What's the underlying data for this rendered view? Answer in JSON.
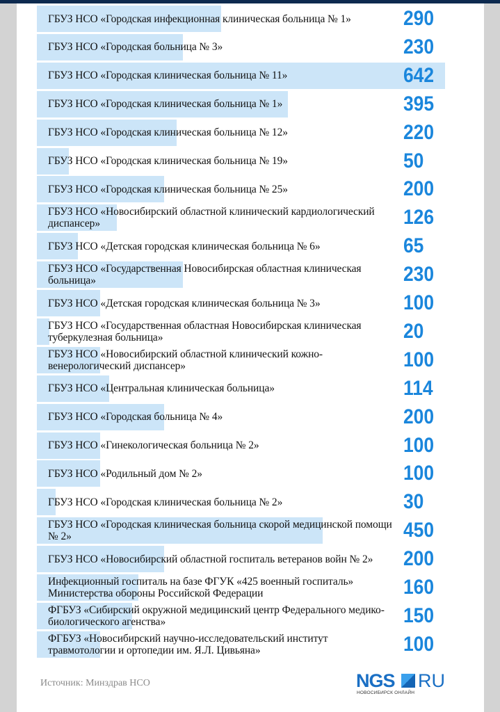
{
  "chart_data": {
    "type": "bar",
    "orientation": "horizontal",
    "color": "#cce5f8",
    "value_color": "#1a86dc",
    "categories": [
      "ГБУЗ НСО «Городская инфекционная  клиническая больница № 1»",
      "ГБУЗ НСО «Городская больница № 3»",
      "ГБУЗ НСО «Городская клиническая больница № 11»",
      "ГБУЗ НСО «Городская клиническая больница № 1»",
      "ГБУЗ НСО «Городская клиническая больница № 12»",
      "ГБУЗ НСО «Городская клиническая больница № 19»",
      "ГБУЗ НСО «Городская клиническая больница № 25»",
      "ГБУЗ НСО «Новосибирский областной клинический кардиологический диспансер»",
      "ГБУЗ НСО «Детская городская клиническая больница № 6»",
      "ГБУЗ НСО «Государственная Новосибирская областная клиническая больница»",
      "ГБУЗ НСО «Детская городская клиническая больница № 3»",
      "ГБУЗ НСО «Государственная областная Новосибирская клиническая туберкулезная больница»",
      "ГБУЗ НСО «Новосибирский областной клинический кожно-венерологический диспансер»",
      "ГБУЗ НСО «Центральная клиническая больница»",
      "ГБУЗ НСО «Городская больница № 4»",
      "ГБУЗ НСО «Гинекологическая больница № 2»",
      "ГБУЗ НСО «Родильный дом № 2»",
      "ГБУЗ НСО «Городская клиническая больница № 2»",
      "ГБУЗ НСО «Городская клиническая больница скорой медицинской помощи № 2»",
      "ГБУЗ НСО «Новосибирский областной госпиталь ветеранов войн № 2»",
      "Инфекционный госпиталь на базе ФГУК «425 военный госпиталь» Министерства обороны Российской Федерации",
      "ФГБУЗ «Сибирский окружной медицинский центр Федерального медико-биологического агенства»",
      "ФГБУЗ «Новосибирский научно-исследовательский институт травмотологии и ортопедии им. Я.Л. Цивьяна»"
    ],
    "values": [
      290,
      230,
      642,
      395,
      220,
      50,
      200,
      126,
      65,
      230,
      100,
      20,
      100,
      114,
      200,
      100,
      100,
      30,
      450,
      200,
      160,
      150,
      100
    ],
    "xlim": [
      0,
      642
    ]
  },
  "footer": {
    "source": "Источник: Минздрав НСО",
    "logo_text": "NGS RU НОВОСИБИРСК ОНЛАЙН"
  }
}
